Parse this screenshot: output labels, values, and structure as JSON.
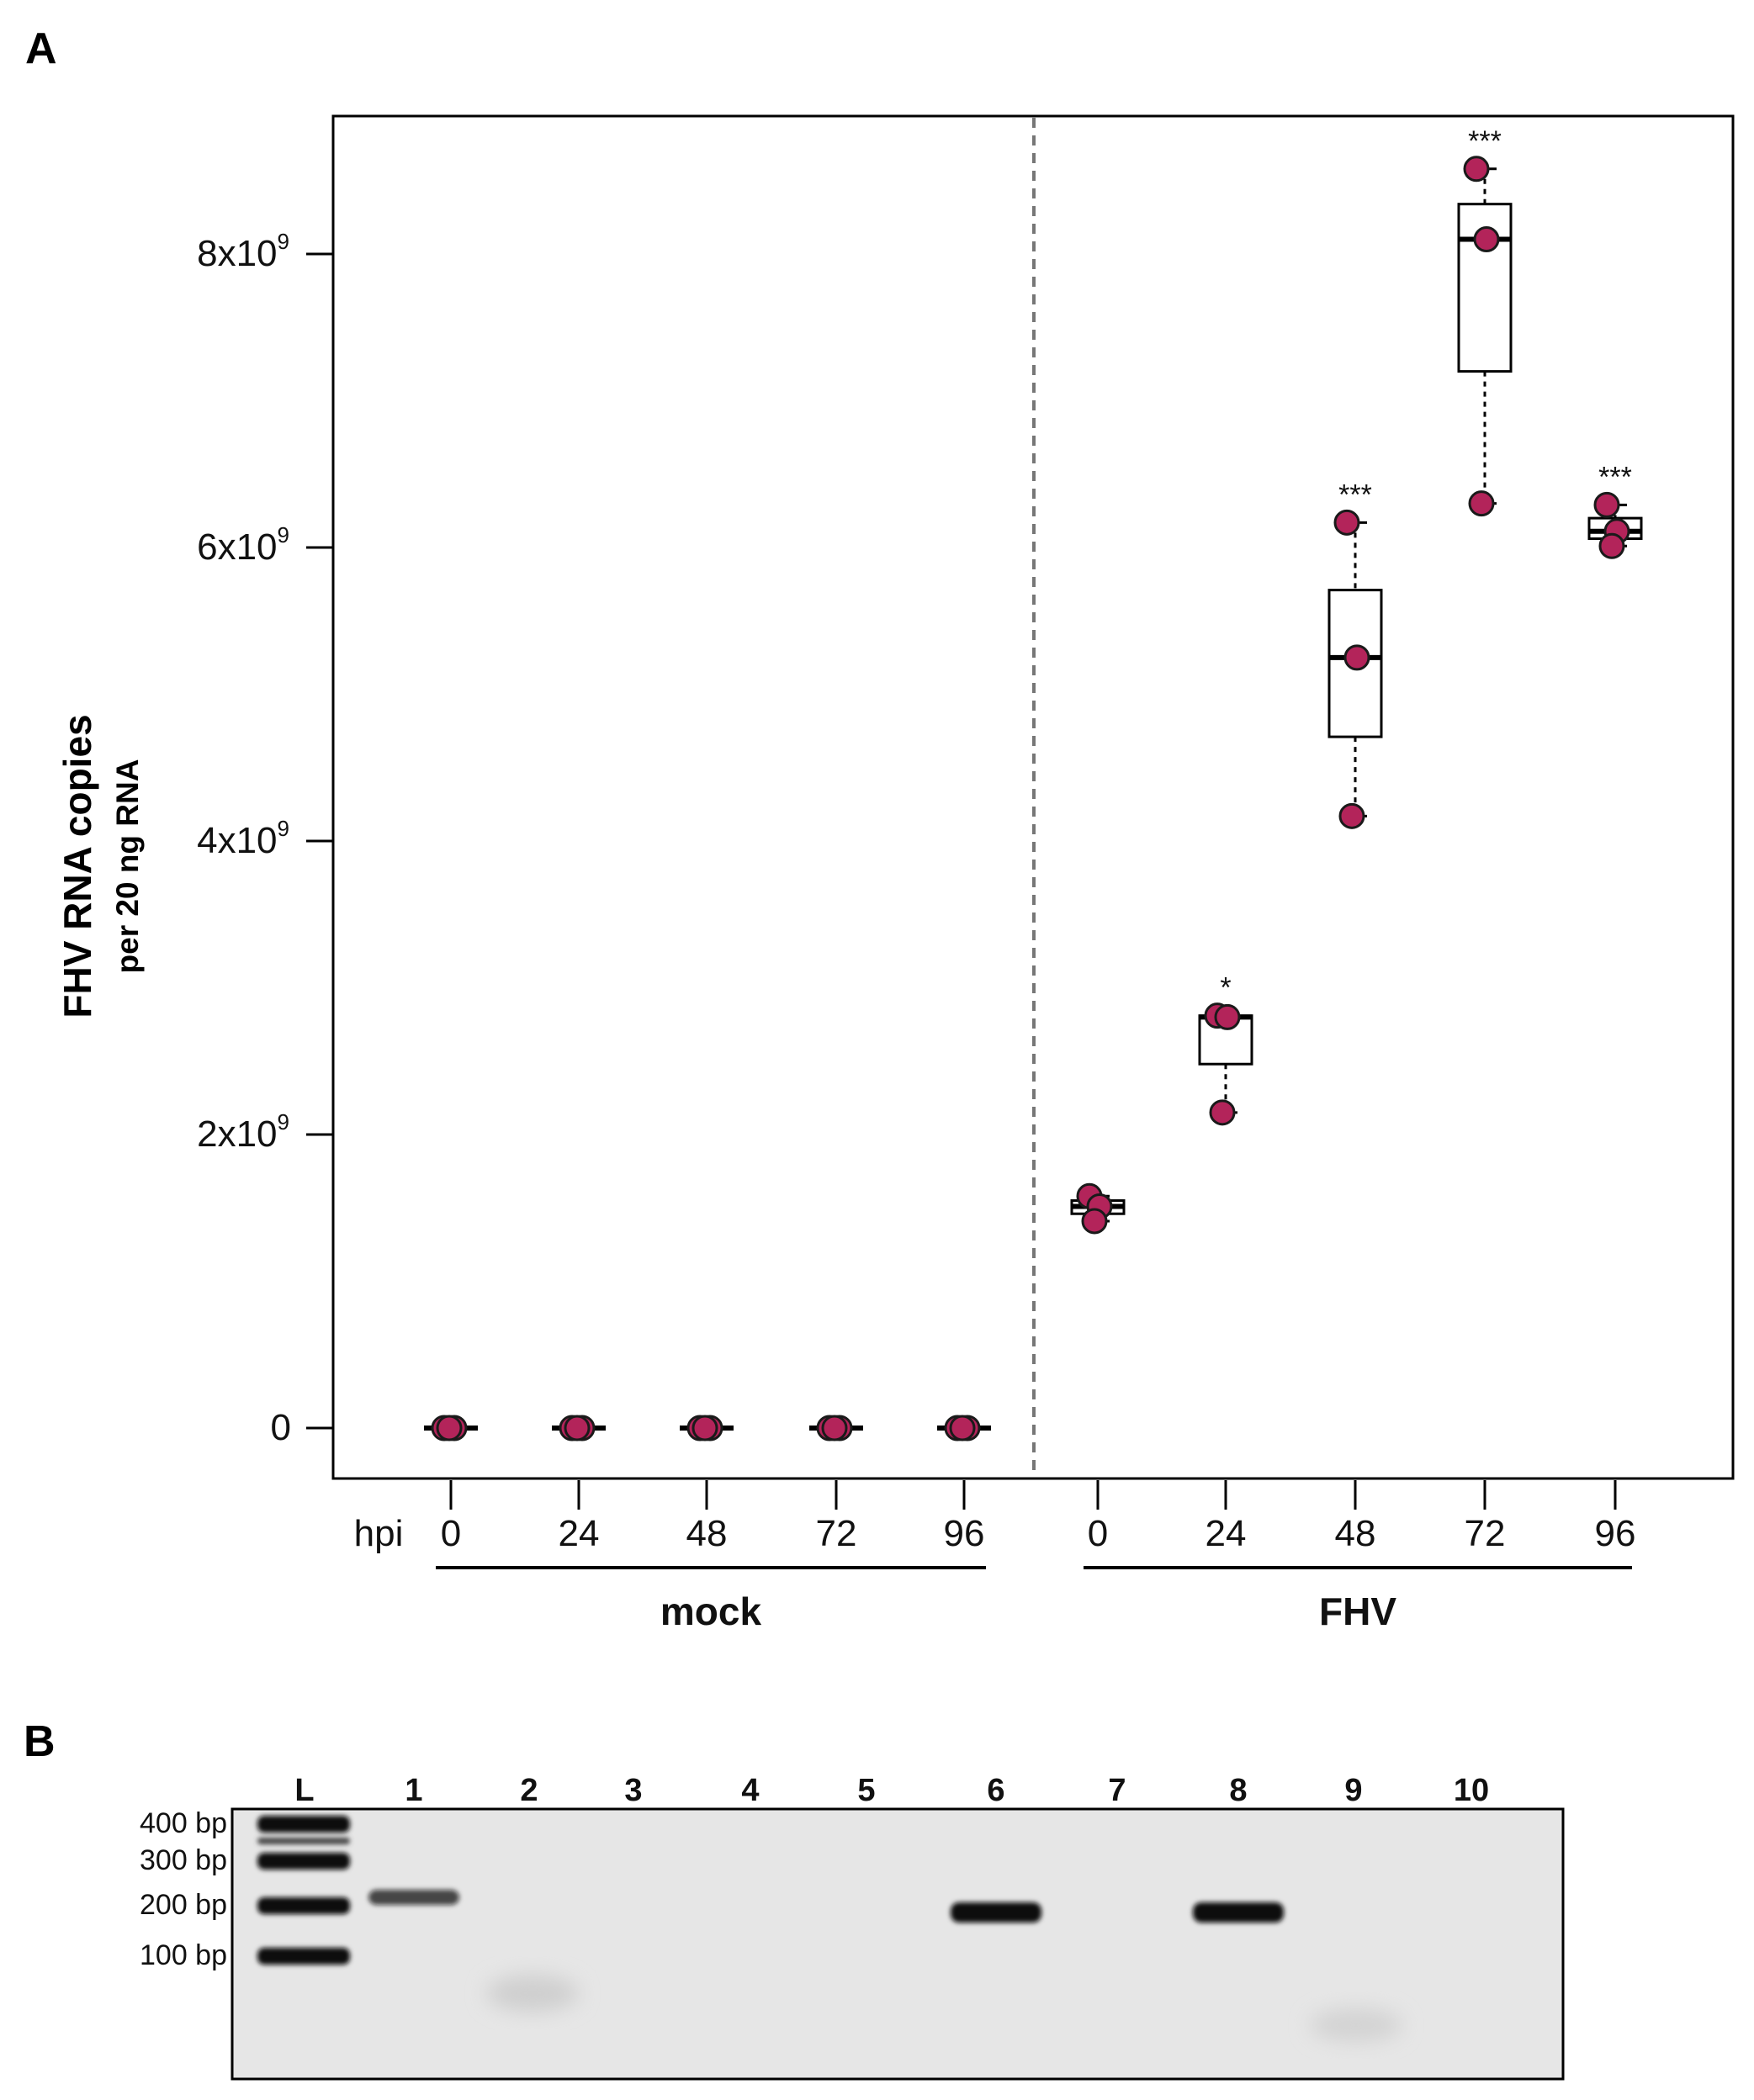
{
  "panel_a": {
    "letter": "A"
  },
  "panel_b": {
    "letter": "B"
  },
  "colors": {
    "point": "#B3245A",
    "axis": "#000000",
    "divider": "#777777",
    "gel_bg": "#E6E6E6"
  },
  "chart_data": [
    {
      "type": "box",
      "ylabel": "FHV RNA copies",
      "ylabel_sub": "per 20 ng RNA",
      "ylim": [
        -500000000.0,
        8800000000.0
      ],
      "yticks": [
        {
          "value": 0,
          "base": "0",
          "sup": ""
        },
        {
          "value": 2000000000.0,
          "base": "2x10",
          "sup": "9"
        },
        {
          "value": 4000000000.0,
          "base": "4x10",
          "sup": "9"
        },
        {
          "value": 6000000000.0,
          "base": "6x10",
          "sup": "9"
        },
        {
          "value": 8000000000.0,
          "base": "8x10",
          "sup": "9"
        }
      ],
      "xaxis_prefix": "hpi",
      "groups": [
        {
          "name": "mock",
          "categories": [
            {
              "label": "0",
              "points": [
                0,
                0,
                0
              ],
              "box": [
                0,
                0,
                0,
                0,
                0
              ],
              "sig": ""
            },
            {
              "label": "24",
              "points": [
                0,
                0,
                0
              ],
              "box": [
                0,
                0,
                0,
                0,
                0
              ],
              "sig": ""
            },
            {
              "label": "48",
              "points": [
                0,
                0,
                0
              ],
              "box": [
                0,
                0,
                0,
                0,
                0
              ],
              "sig": ""
            },
            {
              "label": "72",
              "points": [
                0,
                0,
                0
              ],
              "box": [
                0,
                0,
                0,
                0,
                0
              ],
              "sig": ""
            },
            {
              "label": "96",
              "points": [
                0,
                0,
                0
              ],
              "box": [
                0,
                0,
                0,
                0,
                0
              ],
              "sig": ""
            }
          ]
        },
        {
          "name": "FHV",
          "categories": [
            {
              "label": "0",
              "points": [
                1580000000.0,
                1510000000.0,
                1410000000.0
              ],
              "box": [
                1410000000.0,
                1460000000.0,
                1510000000.0,
                1550000000.0,
                1580000000.0
              ],
              "sig": ""
            },
            {
              "label": "24",
              "points": [
                2810000000.0,
                2800000000.0,
                2150000000.0
              ],
              "box": [
                2150000000.0,
                2480000000.0,
                2800000000.0,
                2810000000.0,
                2810000000.0
              ],
              "sig": "*"
            },
            {
              "label": "48",
              "points": [
                6170000000.0,
                5250000000.0,
                4170000000.0
              ],
              "box": [
                4170000000.0,
                4710000000.0,
                5250000000.0,
                5710000000.0,
                6170000000.0
              ],
              "sig": "***"
            },
            {
              "label": "72",
              "points": [
                8580000000.0,
                8100000000.0,
                6300000000.0
              ],
              "box": [
                6300000000.0,
                7200000000.0,
                8100000000.0,
                8340000000.0,
                8580000000.0
              ],
              "sig": "***"
            },
            {
              "label": "96",
              "points": [
                6290000000.0,
                6110000000.0,
                6010000000.0
              ],
              "box": [
                6010000000.0,
                6060000000.0,
                6110000000.0,
                6200000000.0,
                6290000000.0
              ],
              "sig": "***"
            }
          ]
        }
      ]
    },
    {
      "type": "gel",
      "lanes": [
        "L",
        "1",
        "2",
        "3",
        "4",
        "5",
        "6",
        "7",
        "8",
        "9",
        "10"
      ],
      "size_markers": [
        "400 bp",
        "300 bp",
        "200 bp",
        "100 bp"
      ],
      "bands": [
        {
          "lane": "1",
          "size_bp": 200,
          "intensity": 0.75
        },
        {
          "lane": "6",
          "size_bp": 180,
          "intensity": 1.0
        },
        {
          "lane": "8",
          "size_bp": 180,
          "intensity": 1.0
        }
      ]
    }
  ]
}
